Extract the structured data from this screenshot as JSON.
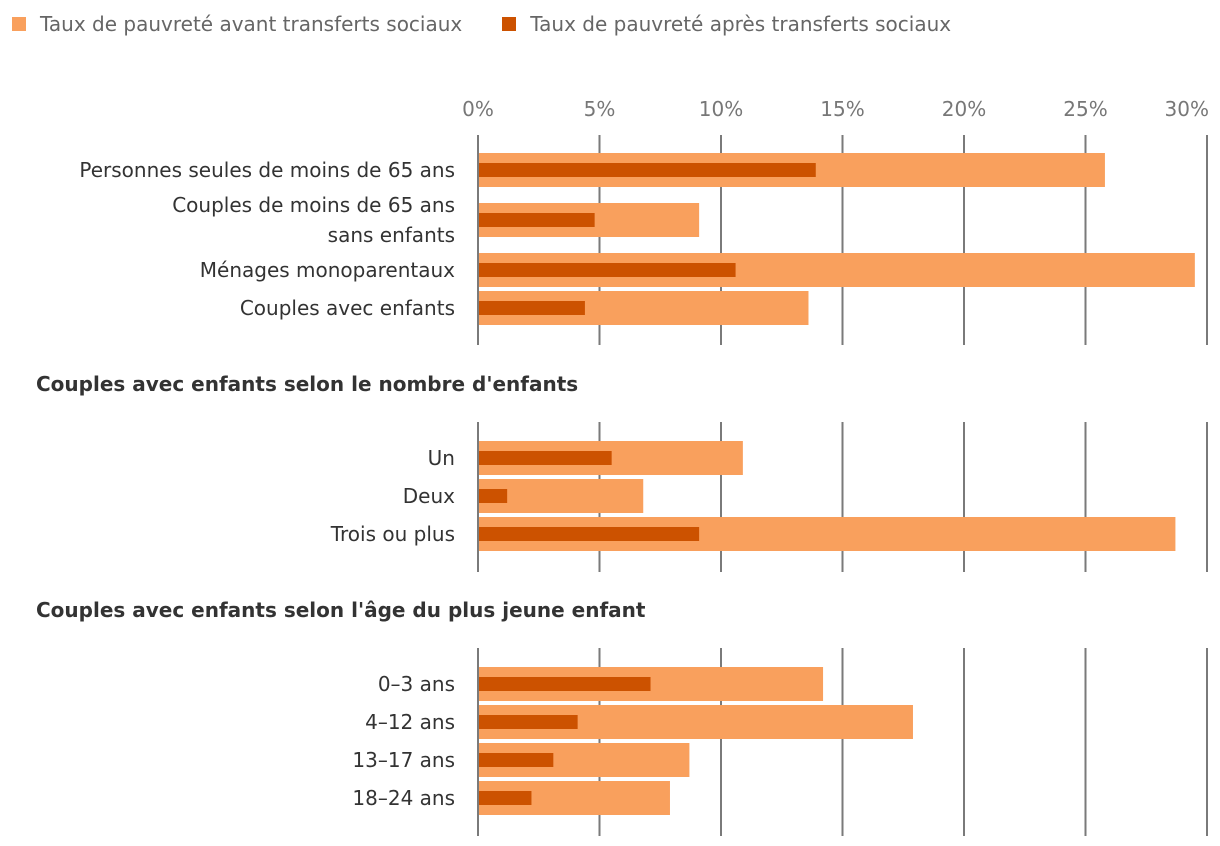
{
  "chart_data": {
    "type": "bar",
    "orientation": "horizontal",
    "xlim": [
      0,
      30
    ],
    "ticks": [
      "0%",
      "5%",
      "10%",
      "15%",
      "20%",
      "25%",
      "30%"
    ],
    "grid": true,
    "legend_position": "top-left",
    "colors": {
      "before": "#f9a05d",
      "after": "#cc5200",
      "grid": "#7a7a7a"
    },
    "legend": [
      "Taux de pauvreté avant transferts sociaux",
      "Taux de pauvreté après transferts sociaux"
    ],
    "groups": [
      {
        "title": "",
        "categories": [
          [
            "Personnes seules de moins de 65 ans"
          ],
          [
            "Couples de moins de 65 ans",
            "sans enfants"
          ],
          [
            "Ménages monoparentaux"
          ],
          [
            "Couples avec enfants"
          ]
        ],
        "series": [
          {
            "name": "Taux de pauvreté avant transferts sociaux",
            "values": [
              25.8,
              9.1,
              29.5,
              13.6
            ]
          },
          {
            "name": "Taux de pauvreté après transferts sociaux",
            "values": [
              13.9,
              4.8,
              10.6,
              4.4
            ]
          }
        ]
      },
      {
        "title": "Couples avec enfants selon le nombre d'enfants",
        "categories": [
          [
            "Un"
          ],
          [
            "Deux"
          ],
          [
            "Trois ou plus"
          ]
        ],
        "series": [
          {
            "name": "Taux de pauvreté avant transferts sociaux",
            "values": [
              10.9,
              6.8,
              28.7
            ]
          },
          {
            "name": "Taux de pauvreté après transferts sociaux",
            "values": [
              5.5,
              1.2,
              9.1
            ]
          }
        ]
      },
      {
        "title": "Couples avec enfants selon l'âge du plus jeune enfant",
        "categories": [
          [
            "0–3 ans"
          ],
          [
            "4–12 ans"
          ],
          [
            "13–17 ans"
          ],
          [
            "18–24 ans"
          ]
        ],
        "series": [
          {
            "name": "Taux de pauvreté avant transferts sociaux",
            "values": [
              14.2,
              17.9,
              8.7,
              7.9
            ]
          },
          {
            "name": "Taux de pauvreté après transferts sociaux",
            "values": [
              7.1,
              4.1,
              3.1,
              2.2
            ]
          }
        ]
      }
    ]
  }
}
